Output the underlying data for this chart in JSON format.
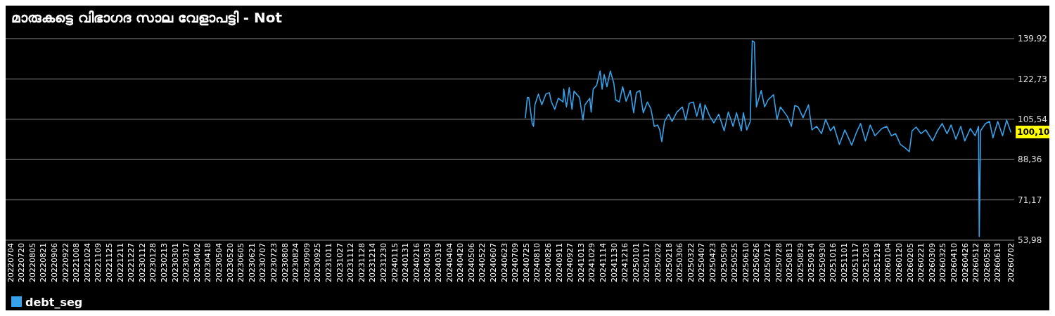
{
  "chart_data": {
    "type": "line",
    "title": "മാരുകട്ടെ വിഭാഗദ സാല വേളാപട്ടി - Not",
    "x": [
      "2024-07-24",
      "2024-07-27",
      "2024-07-29",
      "2024-08-03",
      "2024-08-05",
      "2024-08-07",
      "2024-08-12",
      "2024-08-17",
      "2024-08-23",
      "2024-08-28",
      "2024-08-31",
      "2024-09-05",
      "2024-09-10",
      "2024-09-17",
      "2024-09-18",
      "2024-09-22",
      "2024-09-26",
      "2024-09-30",
      "2024-10-03",
      "2024-10-11",
      "2024-10-16",
      "2024-10-19",
      "2024-10-26",
      "2024-10-28",
      "2024-10-31",
      "2024-11-05",
      "2024-11-10",
      "2024-11-13",
      "2024-11-16",
      "2024-11-20",
      "2024-11-25",
      "2024-11-30",
      "2024-12-03",
      "2024-12-08",
      "2024-12-13",
      "2024-12-18",
      "2024-12-24",
      "2024-12-29",
      "2025-01-02",
      "2025-01-07",
      "2025-01-12",
      "2025-01-18",
      "2025-01-23",
      "2025-01-28",
      "2025-02-02",
      "2025-02-05",
      "2025-02-08",
      "2025-02-12",
      "2025-02-18",
      "2025-02-23",
      "2025-03-02",
      "2025-03-10",
      "2025-03-15",
      "2025-03-20",
      "2025-03-26",
      "2025-03-31",
      "2025-04-05",
      "2025-04-09",
      "2025-04-12",
      "2025-04-19",
      "2025-04-25",
      "2025-05-02",
      "2025-05-10",
      "2025-05-16",
      "2025-05-23",
      "2025-05-28",
      "2025-06-04",
      "2025-06-07",
      "2025-06-12",
      "2025-06-17",
      "2025-06-20",
      "2025-06-23",
      "2025-06-26",
      "2025-07-03",
      "2025-07-08",
      "2025-07-13",
      "2025-07-21",
      "2025-07-26",
      "2025-07-31",
      "2025-08-10",
      "2025-08-16",
      "2025-08-21",
      "2025-08-26",
      "2025-09-02",
      "2025-09-10",
      "2025-09-15",
      "2025-09-22",
      "2025-09-29",
      "2025-10-05",
      "2025-10-12",
      "2025-10-17",
      "2025-10-25",
      "2025-11-02",
      "2025-11-12",
      "2025-11-19",
      "2025-11-25",
      "2025-12-02",
      "2025-12-09",
      "2025-12-16",
      "2025-12-26",
      "2026-01-02",
      "2026-01-09",
      "2026-01-15",
      "2026-01-22",
      "2026-01-29",
      "2026-02-04",
      "2026-02-08",
      "2026-02-14",
      "2026-02-21",
      "2026-02-28",
      "2026-03-10",
      "2026-03-17",
      "2026-03-24",
      "2026-03-31",
      "2026-04-06",
      "2026-04-13",
      "2026-04-20",
      "2026-04-26",
      "2026-05-04",
      "2026-05-11",
      "2026-05-16",
      "2026-05-17",
      "2026-05-19",
      "2026-05-26",
      "2026-06-01",
      "2026-06-06",
      "2026-06-13",
      "2026-06-20",
      "2026-06-26",
      "2026-07-02"
    ],
    "series": [
      {
        "name": "debt_seg",
        "color": "#36a2eb",
        "values": [
          106.2,
          114.9,
          114.8,
          103.7,
          102.5,
          111.7,
          116.3,
          111.7,
          116.3,
          116.9,
          112.9,
          109.8,
          114.5,
          112.9,
          118.4,
          110.8,
          119.0,
          109.8,
          117.5,
          114.8,
          105.2,
          111.7,
          114.5,
          108.6,
          118.4,
          120.0,
          126.1,
          118.4,
          124.6,
          119.4,
          126.1,
          120.9,
          113.8,
          112.9,
          119.4,
          113.2,
          117.8,
          108.3,
          116.9,
          117.8,
          108.3,
          112.9,
          110.1,
          102.5,
          103.1,
          101.0,
          96.0,
          104.6,
          107.7,
          104.6,
          108.6,
          110.8,
          105.2,
          112.3,
          112.9,
          106.8,
          112.3,
          105.2,
          111.7,
          106.8,
          104.0,
          107.7,
          100.6,
          108.6,
          102.5,
          108.3,
          100.6,
          108.3,
          101.0,
          104.6,
          139.0,
          138.4,
          110.8,
          117.8,
          110.8,
          113.8,
          116.0,
          105.5,
          110.8,
          106.8,
          102.5,
          111.4,
          110.8,
          106.2,
          111.7,
          101.0,
          102.5,
          99.4,
          105.5,
          100.6,
          102.5,
          94.8,
          101.0,
          94.5,
          100.0,
          103.7,
          96.3,
          103.1,
          98.5,
          101.6,
          102.5,
          98.5,
          99.4,
          94.8,
          93.3,
          91.7,
          100.6,
          102.2,
          99.4,
          101.0,
          96.3,
          100.6,
          103.7,
          99.4,
          103.1,
          97.0,
          102.5,
          96.3,
          101.6,
          98.5,
          102.5,
          55.5,
          100.6,
          103.7,
          104.6,
          97.6,
          104.6,
          98.5,
          105.2,
          100.1
        ]
      }
    ],
    "xlim": [
      "2022-06-27",
      "2026-07-07"
    ],
    "xticks": [
      {
        "value": "2022-07-04",
        "label": "20220704"
      },
      {
        "value": "2022-07-20",
        "label": "20220720"
      },
      {
        "value": "2022-08-05",
        "label": "20220805"
      },
      {
        "value": "2022-08-21",
        "label": "20220821"
      },
      {
        "value": "2022-09-06",
        "label": "20220906"
      },
      {
        "value": "2022-09-22",
        "label": "20220922"
      },
      {
        "value": "2022-10-08",
        "label": "20221008"
      },
      {
        "value": "2022-10-24",
        "label": "20221024"
      },
      {
        "value": "2022-11-09",
        "label": "20221109"
      },
      {
        "value": "2022-11-25",
        "label": "20221125"
      },
      {
        "value": "2022-12-11",
        "label": "20221211"
      },
      {
        "value": "2022-12-27",
        "label": "20221227"
      },
      {
        "value": "2023-01-12",
        "label": "20230112"
      },
      {
        "value": "2023-01-28",
        "label": "20230128"
      },
      {
        "value": "2023-02-13",
        "label": "20230213"
      },
      {
        "value": "2023-03-01",
        "label": "20230301"
      },
      {
        "value": "2023-03-17",
        "label": "20230317"
      },
      {
        "value": "2023-04-02",
        "label": "20230402"
      },
      {
        "value": "2023-04-18",
        "label": "20230418"
      },
      {
        "value": "2023-05-04",
        "label": "20230504"
      },
      {
        "value": "2023-05-20",
        "label": "20230520"
      },
      {
        "value": "2023-06-05",
        "label": "20230605"
      },
      {
        "value": "2023-06-21",
        "label": "20230621"
      },
      {
        "value": "2023-07-07",
        "label": "20230707"
      },
      {
        "value": "2023-07-23",
        "label": "20230723"
      },
      {
        "value": "2023-08-08",
        "label": "20230808"
      },
      {
        "value": "2023-08-24",
        "label": "20230824"
      },
      {
        "value": "2023-09-09",
        "label": "20230909"
      },
      {
        "value": "2023-09-25",
        "label": "20230925"
      },
      {
        "value": "2023-10-11",
        "label": "20231011"
      },
      {
        "value": "2023-10-27",
        "label": "20231027"
      },
      {
        "value": "2023-11-12",
        "label": "20231112"
      },
      {
        "value": "2023-11-28",
        "label": "20231128"
      },
      {
        "value": "2023-12-14",
        "label": "20231214"
      },
      {
        "value": "2023-12-30",
        "label": "20231230"
      },
      {
        "value": "2024-01-15",
        "label": "20240115"
      },
      {
        "value": "2024-01-31",
        "label": "20240131"
      },
      {
        "value": "2024-02-16",
        "label": "20240216"
      },
      {
        "value": "2024-03-03",
        "label": "20240303"
      },
      {
        "value": "2024-03-19",
        "label": "20240319"
      },
      {
        "value": "2024-04-04",
        "label": "20240404"
      },
      {
        "value": "2024-04-20",
        "label": "20240420"
      },
      {
        "value": "2024-05-06",
        "label": "20240506"
      },
      {
        "value": "2024-05-22",
        "label": "20240522"
      },
      {
        "value": "2024-06-07",
        "label": "20240607"
      },
      {
        "value": "2024-06-23",
        "label": "20240623"
      },
      {
        "value": "2024-07-09",
        "label": "20240709"
      },
      {
        "value": "2024-07-25",
        "label": "20240725"
      },
      {
        "value": "2024-08-10",
        "label": "20240810"
      },
      {
        "value": "2024-08-26",
        "label": "20240826"
      },
      {
        "value": "2024-09-11",
        "label": "20240911"
      },
      {
        "value": "2024-09-27",
        "label": "20240927"
      },
      {
        "value": "2024-10-13",
        "label": "20241013"
      },
      {
        "value": "2024-10-29",
        "label": "20241029"
      },
      {
        "value": "2024-11-14",
        "label": "20241114"
      },
      {
        "value": "2024-11-30",
        "label": "20241130"
      },
      {
        "value": "2024-12-16",
        "label": "20241216"
      },
      {
        "value": "2025-01-01",
        "label": "20250101"
      },
      {
        "value": "2025-01-17",
        "label": "20250117"
      },
      {
        "value": "2025-02-02",
        "label": "20250202"
      },
      {
        "value": "2025-02-18",
        "label": "20250218"
      },
      {
        "value": "2025-03-06",
        "label": "20250306"
      },
      {
        "value": "2025-03-22",
        "label": "20250322"
      },
      {
        "value": "2025-04-07",
        "label": "20250407"
      },
      {
        "value": "2025-04-23",
        "label": "20250423"
      },
      {
        "value": "2025-05-09",
        "label": "20250509"
      },
      {
        "value": "2025-05-25",
        "label": "20250525"
      },
      {
        "value": "2025-06-10",
        "label": "20250610"
      },
      {
        "value": "2025-06-26",
        "label": "20250626"
      },
      {
        "value": "2025-07-12",
        "label": "20250712"
      },
      {
        "value": "2025-07-28",
        "label": "20250728"
      },
      {
        "value": "2025-08-13",
        "label": "20250813"
      },
      {
        "value": "2025-08-29",
        "label": "20250829"
      },
      {
        "value": "2025-09-14",
        "label": "20250914"
      },
      {
        "value": "2025-09-30",
        "label": "20250930"
      },
      {
        "value": "2025-10-16",
        "label": "20251016"
      },
      {
        "value": "2025-11-01",
        "label": "20251101"
      },
      {
        "value": "2025-11-17",
        "label": "20251117"
      },
      {
        "value": "2025-12-03",
        "label": "20251203"
      },
      {
        "value": "2025-12-19",
        "label": "20251219"
      },
      {
        "value": "2026-01-04",
        "label": "20260104"
      },
      {
        "value": "2026-01-20",
        "label": "20260120"
      },
      {
        "value": "2026-02-05",
        "label": "20260205"
      },
      {
        "value": "2026-02-21",
        "label": "20260221"
      },
      {
        "value": "2026-03-09",
        "label": "20260309"
      },
      {
        "value": "2026-03-25",
        "label": "20260325"
      },
      {
        "value": "2026-04-10",
        "label": "20260410"
      },
      {
        "value": "2026-04-26",
        "label": "20260426"
      },
      {
        "value": "2026-05-12",
        "label": "20260512"
      },
      {
        "value": "2026-05-28",
        "label": "20260528"
      },
      {
        "value": "2026-06-13",
        "label": "20260613"
      },
      {
        "value": "2026-07-02",
        "label": "20260702"
      }
    ],
    "ylim": [
      53.98,
      139.92
    ],
    "yticks": [
      {
        "value": 53.98,
        "label": "53,98"
      },
      {
        "value": 71.17,
        "label": "71,17"
      },
      {
        "value": 88.36,
        "label": "88,36"
      },
      {
        "value": 105.54,
        "label": "105,54"
      },
      {
        "value": 122.73,
        "label": "122,73"
      },
      {
        "value": 139.92,
        "label": "139,92"
      }
    ],
    "grid": "y",
    "legend": "bottom left",
    "annotations": [
      {
        "text": "100,10",
        "x": "2026-07-02",
        "y": 100.1
      }
    ]
  }
}
